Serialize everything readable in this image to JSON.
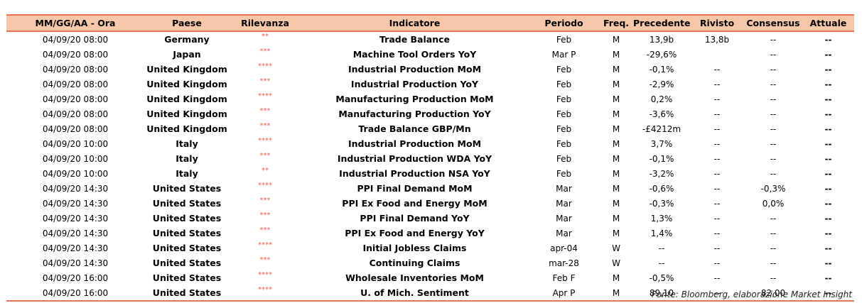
{
  "headers": {
    "datetime": "MM/GG/AA - Ora",
    "country": "Paese",
    "relevance": "Rilevanza",
    "indicator": "Indicatore",
    "period": "Periodo",
    "freq": "Freq.",
    "previous": "Precedente",
    "revised": "Rivisto",
    "consensus": "Consensus",
    "actual": "Attuale"
  },
  "colors": {
    "accent": "#ee7057",
    "header_bg": "#f6c7a8",
    "stars": "#ee5a46"
  },
  "rows": [
    {
      "datetime": "04/09/20 08:00",
      "country": "Germany",
      "relevance": "**",
      "indicator": "Trade Balance",
      "period": "Feb",
      "freq": "M",
      "previous": "13,9b",
      "revised": "13,8b",
      "consensus": "--",
      "actual": "--"
    },
    {
      "datetime": "04/09/20 08:00",
      "country": "Japan",
      "relevance": "***",
      "indicator": "Machine Tool Orders YoY",
      "period": "Mar P",
      "freq": "M",
      "previous": "-29,6%",
      "revised": "",
      "consensus": "--",
      "actual": "--"
    },
    {
      "datetime": "04/09/20 08:00",
      "country": "United Kingdom",
      "relevance": "****",
      "indicator": "Industrial Production MoM",
      "period": "Feb",
      "freq": "M",
      "previous": "-0,1%",
      "revised": "--",
      "consensus": "--",
      "actual": "--"
    },
    {
      "datetime": "04/09/20 08:00",
      "country": "United Kingdom",
      "relevance": "***",
      "indicator": "Industrial Production YoY",
      "period": "Feb",
      "freq": "M",
      "previous": "-2,9%",
      "revised": "--",
      "consensus": "--",
      "actual": "--"
    },
    {
      "datetime": "04/09/20 08:00",
      "country": "United Kingdom",
      "relevance": "****",
      "indicator": "Manufacturing Production MoM",
      "period": "Feb",
      "freq": "M",
      "previous": "0,2%",
      "revised": "--",
      "consensus": "--",
      "actual": "--"
    },
    {
      "datetime": "04/09/20 08:00",
      "country": "United Kingdom",
      "relevance": "***",
      "indicator": "Manufacturing Production YoY",
      "period": "Feb",
      "freq": "M",
      "previous": "-3,6%",
      "revised": "--",
      "consensus": "--",
      "actual": "--"
    },
    {
      "datetime": "04/09/20 08:00",
      "country": "United Kingdom",
      "relevance": "***",
      "indicator": "Trade Balance GBP/Mn",
      "period": "Feb",
      "freq": "M",
      "previous": "-£4212m",
      "revised": "--",
      "consensus": "--",
      "actual": "--"
    },
    {
      "datetime": "04/09/20 10:00",
      "country": "Italy",
      "relevance": "****",
      "indicator": "Industrial Production MoM",
      "period": "Feb",
      "freq": "M",
      "previous": "3,7%",
      "revised": "--",
      "consensus": "--",
      "actual": "--"
    },
    {
      "datetime": "04/09/20 10:00",
      "country": "Italy",
      "relevance": "***",
      "indicator": "Industrial Production WDA YoY",
      "period": "Feb",
      "freq": "M",
      "previous": "-0,1%",
      "revised": "--",
      "consensus": "--",
      "actual": "--"
    },
    {
      "datetime": "04/09/20 10:00",
      "country": "Italy",
      "relevance": "**",
      "indicator": "Industrial Production NSA YoY",
      "period": "Feb",
      "freq": "M",
      "previous": "-3,2%",
      "revised": "--",
      "consensus": "--",
      "actual": "--"
    },
    {
      "datetime": "04/09/20 14:30",
      "country": "United States",
      "relevance": "****",
      "indicator": "PPI Final Demand MoM",
      "period": "Mar",
      "freq": "M",
      "previous": "-0,6%",
      "revised": "--",
      "consensus": "-0,3%",
      "actual": "--"
    },
    {
      "datetime": "04/09/20 14:30",
      "country": "United States",
      "relevance": "***",
      "indicator": "PPI Ex Food and Energy MoM",
      "period": "Mar",
      "freq": "M",
      "previous": "-0,3%",
      "revised": "--",
      "consensus": "0,0%",
      "actual": "--"
    },
    {
      "datetime": "04/09/20 14:30",
      "country": "United States",
      "relevance": "***",
      "indicator": "PPI Final Demand YoY",
      "period": "Mar",
      "freq": "M",
      "previous": "1,3%",
      "revised": "--",
      "consensus": "--",
      "actual": "--"
    },
    {
      "datetime": "04/09/20 14:30",
      "country": "United States",
      "relevance": "***",
      "indicator": "PPI Ex Food and Energy YoY",
      "period": "Mar",
      "freq": "M",
      "previous": "1,4%",
      "revised": "--",
      "consensus": "--",
      "actual": "--"
    },
    {
      "datetime": "04/09/20 14:30",
      "country": "United States",
      "relevance": "****",
      "indicator": "Initial Jobless Claims",
      "period": "apr-04",
      "freq": "W",
      "previous": "--",
      "revised": "--",
      "consensus": "--",
      "actual": "--"
    },
    {
      "datetime": "04/09/20 14:30",
      "country": "United States",
      "relevance": "***",
      "indicator": "Continuing Claims",
      "period": "mar-28",
      "freq": "W",
      "previous": "--",
      "revised": "--",
      "consensus": "--",
      "actual": "--"
    },
    {
      "datetime": "04/09/20 16:00",
      "country": "United States",
      "relevance": "****",
      "indicator": "Wholesale Inventories MoM",
      "period": "Feb F",
      "freq": "M",
      "previous": "-0,5%",
      "revised": "--",
      "consensus": "--",
      "actual": "--"
    },
    {
      "datetime": "04/09/20 16:00",
      "country": "United States",
      "relevance": "****",
      "indicator": "U. of Mich. Sentiment",
      "period": "Apr P",
      "freq": "M",
      "previous": "89,10",
      "revised": "--",
      "consensus": "82,00",
      "actual": "--"
    }
  ],
  "source": "Fonte: Bloomberg, elaborazione Market Insight"
}
